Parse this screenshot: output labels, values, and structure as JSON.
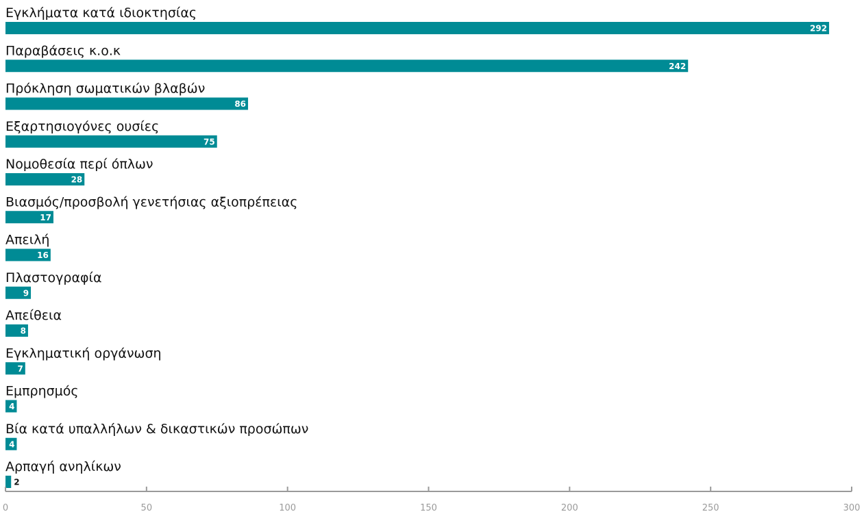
{
  "chart_data": {
    "type": "bar",
    "orientation": "horizontal",
    "title": "",
    "xlabel": "",
    "ylabel": "",
    "categories": [
      "Εγκλήματα κατά ιδιοκτησίας",
      "Παραβάσεις κ.ο.κ",
      "Πρόκληση σωματικών βλαβών",
      "Εξαρτησιογόνες ουσίες",
      "Νομοθεσία περί όπλων",
      "Βιασμός/προσβολή γενετήσιας αξιοπρέπειας",
      "Απειλή",
      "Πλαστογραφία",
      "Απείθεια",
      "Εγκληματική οργάνωση",
      "Εμπρησμός",
      "Βία κατά υπαλλήλων & δικαστικών προσώπων",
      "Αρπαγή ανηλίκων"
    ],
    "values": [
      292,
      242,
      86,
      75,
      28,
      17,
      16,
      9,
      8,
      7,
      4,
      4,
      2
    ],
    "value_labels": [
      "292",
      "242",
      "86",
      "75",
      "28",
      "17",
      "16",
      "9",
      "8",
      "7",
      "4",
      "4",
      "2"
    ],
    "xlim": [
      0,
      300
    ],
    "x_ticks": [
      0,
      50,
      100,
      150,
      200,
      250,
      300
    ],
    "x_tick_labels": [
      "0",
      "50",
      "100",
      "150",
      "200",
      "250",
      "300"
    ],
    "grid": false,
    "legend": "none",
    "colors": {
      "bar": "#008b95",
      "value_label_inside": "#ffffff",
      "value_label_outside": "#111111",
      "axis": "#9a9a9a"
    }
  }
}
